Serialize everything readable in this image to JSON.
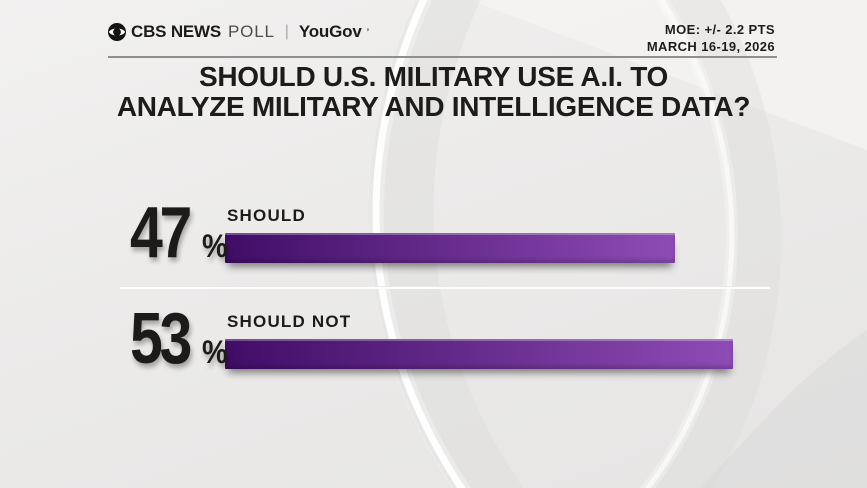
{
  "header": {
    "brand": {
      "network": "CBS NEWS",
      "product": "POLL",
      "separator": "|",
      "partner": "YouGov",
      "partner_mark": "’"
    },
    "moe_line1": "MOE: +/- 2.2 PTS",
    "moe_line2": "MARCH 16-19, 2026"
  },
  "title": {
    "line1": "SHOULD U.S. MILITARY USE A.I. TO",
    "line2": "ANALYZE MILITARY AND INTELLIGENCE DATA?"
  },
  "chart_data": {
    "type": "bar",
    "orientation": "horizontal",
    "title": "SHOULD U.S. MILITARY USE A.I. TO ANALYZE MILITARY AND INTELLIGENCE DATA?",
    "categories": [
      "SHOULD",
      "SHOULD NOT"
    ],
    "values": [
      47,
      53
    ],
    "unit": "%",
    "value_labels": [
      "47%",
      "53%"
    ],
    "axis_max": 57.7,
    "grid": false,
    "legend": false,
    "bar_color_start": "#400d66",
    "bar_color_end": "#8e4cb5",
    "source": "CBS NEWS POLL | YouGov",
    "moe": "MOE: +/- 2.2 PTS",
    "dates": "MARCH 16-19, 2026"
  }
}
